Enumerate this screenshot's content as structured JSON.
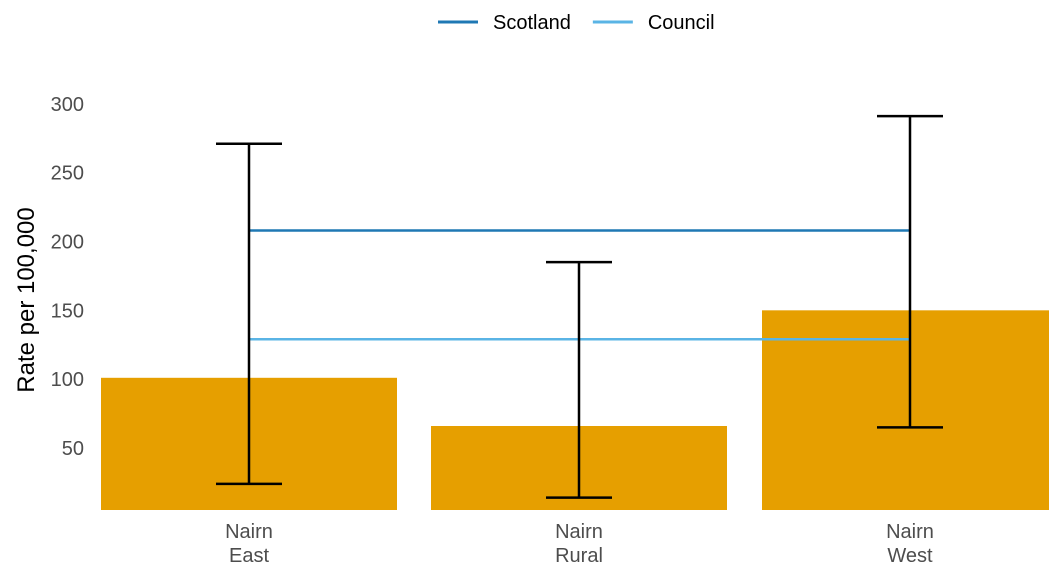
{
  "chart_data": {
    "type": "bar",
    "categories": [
      [
        "Nairn",
        "East"
      ],
      [
        "Nairn",
        "Rural"
      ],
      [
        "Nairn",
        "West"
      ]
    ],
    "values": [
      101,
      66,
      150
    ],
    "error_bars": {
      "lower": [
        24,
        14,
        65
      ],
      "upper": [
        271,
        185,
        291
      ]
    },
    "reference_lines": [
      {
        "name": "Scotland",
        "value": 208,
        "color": "#1f78b4"
      },
      {
        "name": "Council",
        "value": 129,
        "color": "#5ab4e5"
      }
    ],
    "ylabel": "Rate per 100,000",
    "xlabel": "",
    "ylim": [
      5,
      310
    ],
    "yticks": [
      50,
      100,
      150,
      200,
      250,
      300
    ],
    "legend_position": "top",
    "grid": false,
    "bar_color": "#e69f00",
    "errorbar_color": "#000000"
  }
}
